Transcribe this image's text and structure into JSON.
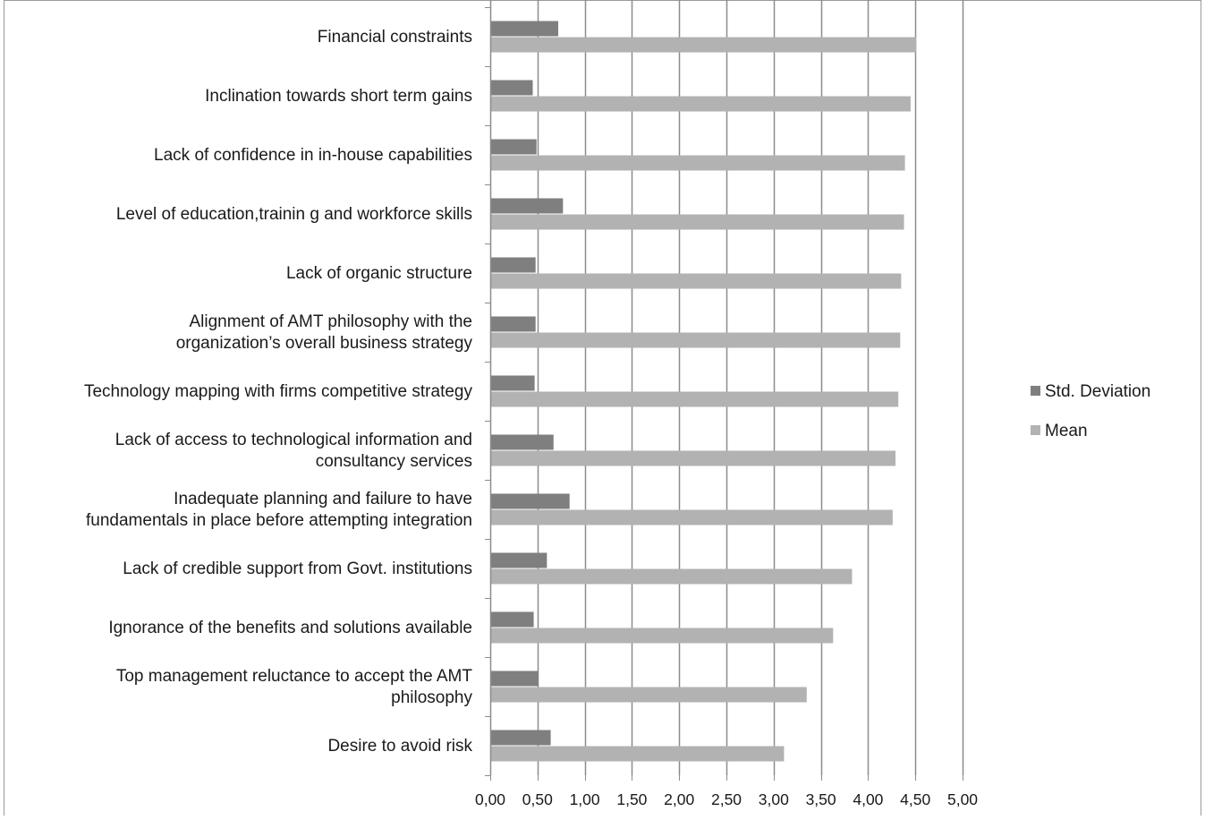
{
  "chart_data": {
    "type": "bar",
    "orientation": "horizontal",
    "categories": [
      "Financial constraints",
      "Inclination towards short term gains",
      "Lack of confidence in in-house capabilities",
      "Level of education,trainin g and workforce skills",
      "Lack of organic structure",
      "Alignment of AMT philosophy with the organization’s overall business strategy",
      "Technology mapping with firms competitive strategy",
      "Lack of access to technological information and consultancy services",
      "Inadequate planning  and failure to have fundamentals in place before attempting integration",
      "Lack of credible support from Govt. institutions",
      "Ignorance of the benefits and solutions available",
      "Top management reluctance to accept the AMT philosophy",
      "Desire to avoid risk"
    ],
    "category_lines": [
      [
        "Financial constraints"
      ],
      [
        "Inclination towards short term gains"
      ],
      [
        "Lack of confidence in in-house capabilities"
      ],
      [
        "Level of education,trainin g and workforce skills"
      ],
      [
        "Lack of organic structure"
      ],
      [
        "Alignment of AMT philosophy with the",
        "organization’s overall business strategy"
      ],
      [
        "Technology mapping with firms competitive strategy"
      ],
      [
        "Lack of access to technological information and",
        "consultancy services"
      ],
      [
        "Inadequate planning  and failure to have",
        "fundamentals in place before attempting integration"
      ],
      [
        "Lack of credible support from Govt. institutions"
      ],
      [
        "Ignorance of the benefits and solutions available"
      ],
      [
        "Top management reluctance to accept the AMT",
        "philosophy"
      ],
      [
        "Desire to avoid risk"
      ]
    ],
    "series": [
      {
        "name": "Std. Deviation",
        "color": "#7f7f7f",
        "values": [
          0.72,
          0.45,
          0.49,
          0.77,
          0.48,
          0.48,
          0.47,
          0.67,
          0.84,
          0.6,
          0.46,
          0.51,
          0.64
        ]
      },
      {
        "name": "Mean",
        "color": "#b2b2b2",
        "values": [
          4.51,
          4.45,
          4.39,
          4.38,
          4.35,
          4.34,
          4.32,
          4.29,
          4.26,
          3.83,
          3.63,
          3.35,
          3.11
        ]
      }
    ],
    "xlim": [
      0,
      5
    ],
    "x_ticks": [
      "0,00",
      "0,50",
      "1,00",
      "1,50",
      "2,00",
      "2,50",
      "3,00",
      "3,50",
      "4,00",
      "4,50",
      "5,00"
    ],
    "xlabel": "",
    "ylabel": "",
    "title": "",
    "grid": "vertical",
    "legend_position": "right"
  }
}
